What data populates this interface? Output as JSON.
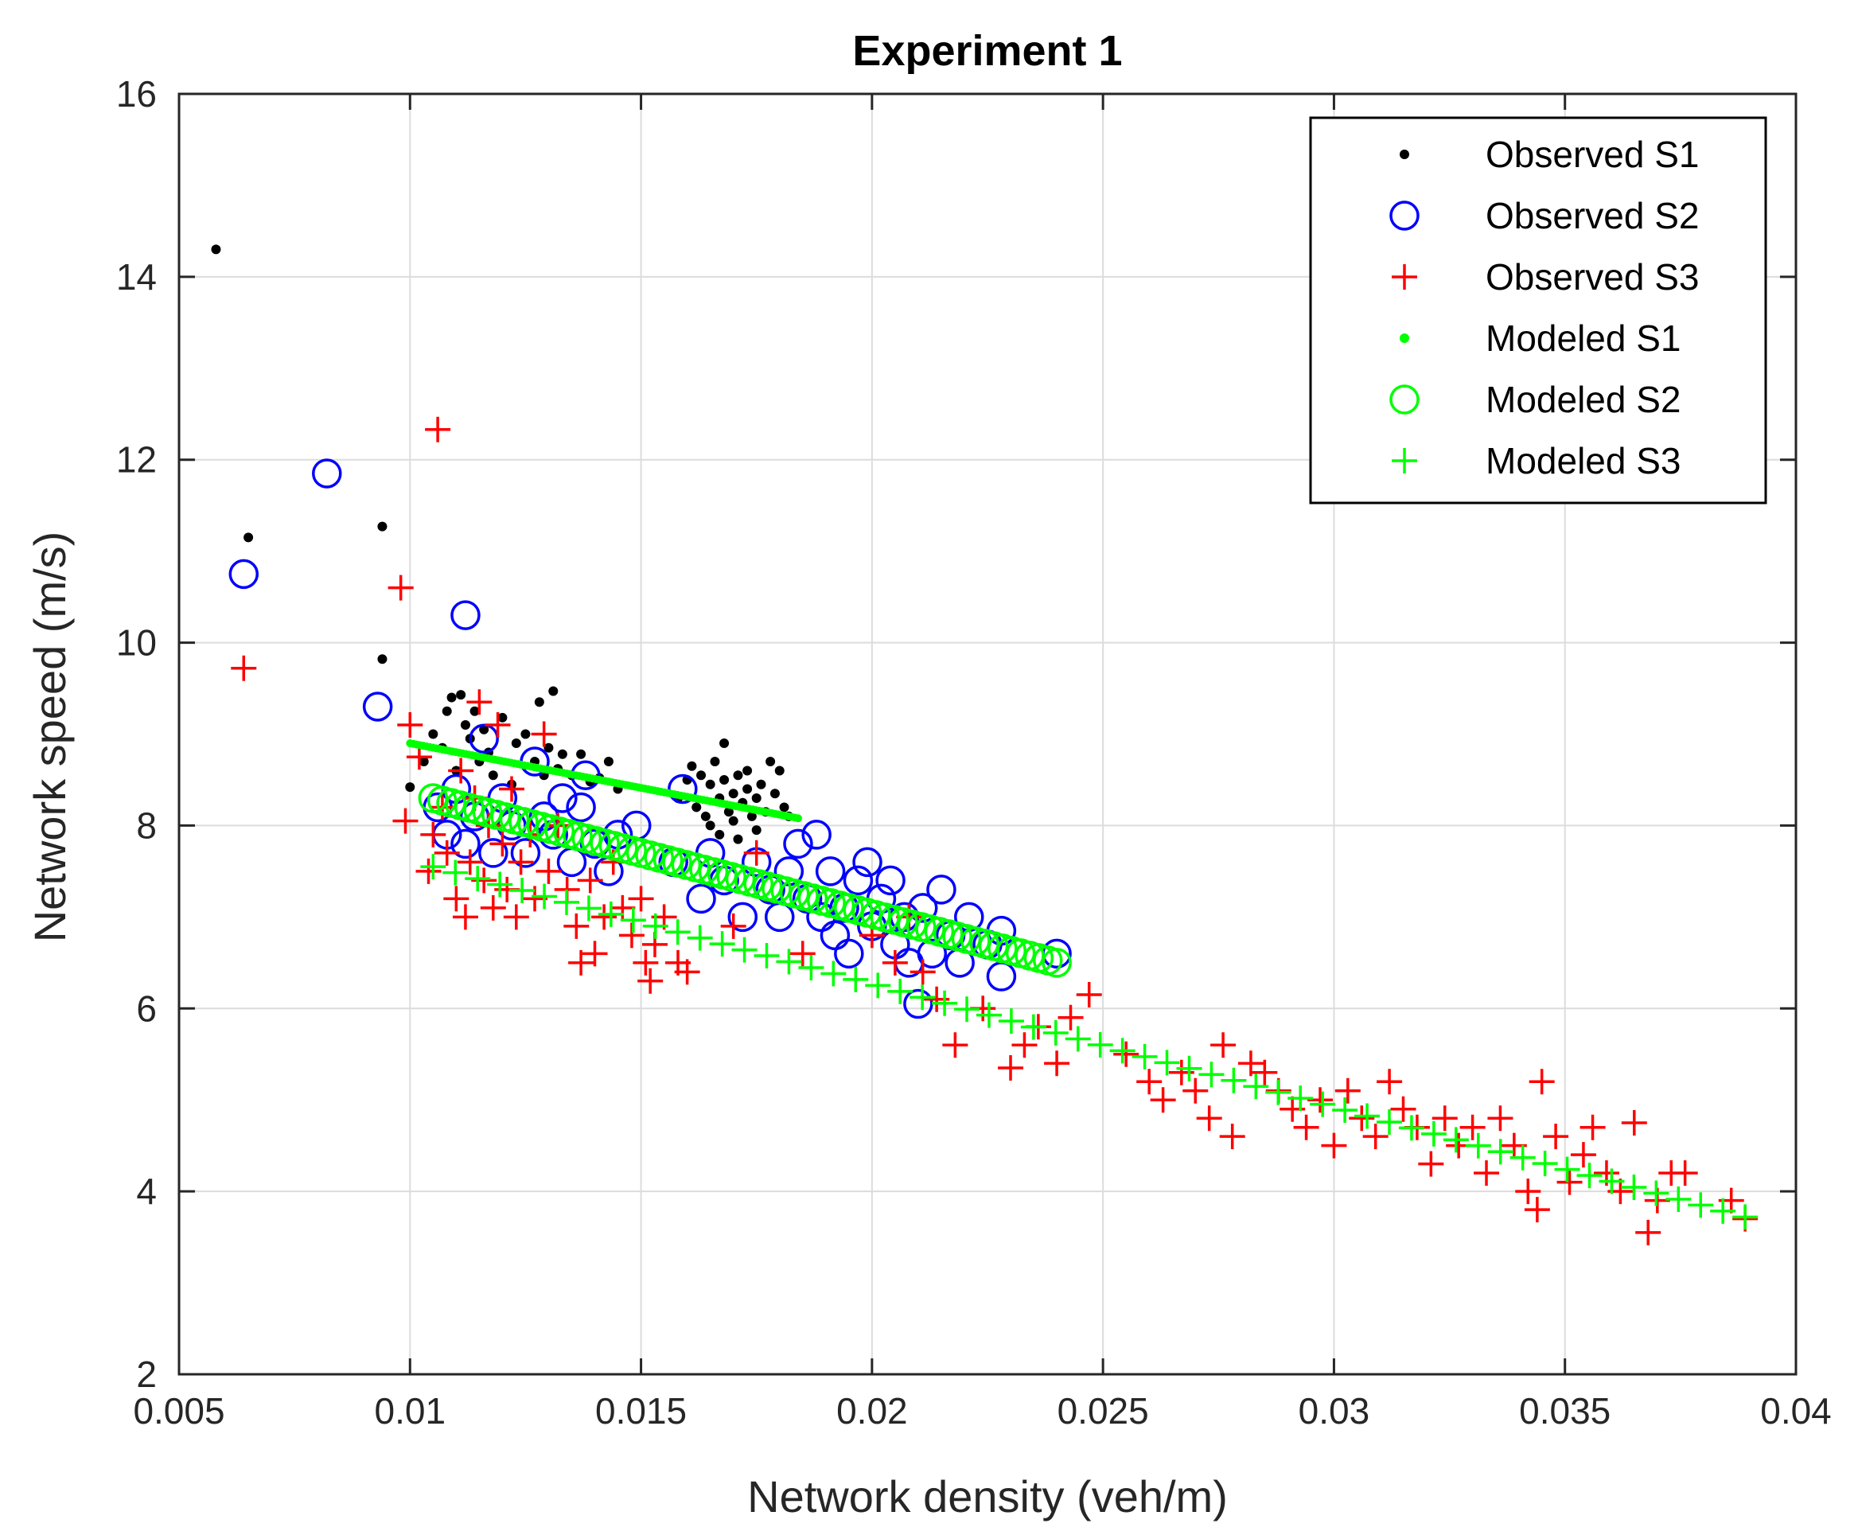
{
  "chart_data": {
    "type": "scatter",
    "title": "Experiment 1",
    "xlabel": "Network density (veh/m)",
    "ylabel": "Network speed (m/s)",
    "xlim": [
      0.005,
      0.04
    ],
    "ylim": [
      2,
      16
    ],
    "xticks": [
      0.005,
      0.01,
      0.015,
      0.02,
      0.025,
      0.03,
      0.035,
      0.04
    ],
    "xtick_labels": [
      "0.005",
      "0.01",
      "0.015",
      "0.02",
      "0.025",
      "0.03",
      "0.035",
      "0.04"
    ],
    "yticks": [
      2,
      4,
      6,
      8,
      10,
      12,
      14,
      16
    ],
    "ytick_labels": [
      "2",
      "4",
      "6",
      "8",
      "10",
      "12",
      "14",
      "16"
    ],
    "grid": true,
    "legend_position": "top-right",
    "series": [
      {
        "name": "Observed S1",
        "color": "#000000",
        "marker": "dot",
        "points": [
          [
            0.0058,
            14.3
          ],
          [
            0.0065,
            11.15
          ],
          [
            0.0094,
            11.27
          ],
          [
            0.0094,
            9.82
          ],
          [
            0.01,
            8.42
          ],
          [
            0.0103,
            8.7
          ],
          [
            0.0105,
            9.0
          ],
          [
            0.0107,
            8.85
          ],
          [
            0.0108,
            9.25
          ],
          [
            0.0109,
            9.4
          ],
          [
            0.011,
            8.6
          ],
          [
            0.0111,
            9.43
          ],
          [
            0.0112,
            9.1
          ],
          [
            0.0113,
            8.95
          ],
          [
            0.0114,
            9.25
          ],
          [
            0.0115,
            8.7
          ],
          [
            0.0116,
            9.05
          ],
          [
            0.0117,
            8.8
          ],
          [
            0.0118,
            8.55
          ],
          [
            0.012,
            9.18
          ],
          [
            0.0122,
            8.45
          ],
          [
            0.0123,
            8.9
          ],
          [
            0.0125,
            9.0
          ],
          [
            0.0127,
            8.7
          ],
          [
            0.0128,
            9.35
          ],
          [
            0.0129,
            8.55
          ],
          [
            0.013,
            8.85
          ],
          [
            0.0131,
            9.47
          ],
          [
            0.0132,
            8.62
          ],
          [
            0.0133,
            8.78
          ],
          [
            0.0135,
            8.55
          ],
          [
            0.0137,
            8.78
          ],
          [
            0.0139,
            8.48
          ],
          [
            0.0141,
            8.52
          ],
          [
            0.0143,
            8.7
          ],
          [
            0.0145,
            8.4
          ],
          [
            0.0158,
            8.3
          ],
          [
            0.016,
            8.5
          ],
          [
            0.0161,
            8.65
          ],
          [
            0.0162,
            8.2
          ],
          [
            0.0163,
            8.55
          ],
          [
            0.0164,
            8.1
          ],
          [
            0.0165,
            8.45
          ],
          [
            0.0165,
            8.0
          ],
          [
            0.0166,
            8.7
          ],
          [
            0.0167,
            8.3
          ],
          [
            0.0167,
            7.9
          ],
          [
            0.0168,
            8.5
          ],
          [
            0.0168,
            8.9
          ],
          [
            0.0169,
            8.15
          ],
          [
            0.017,
            8.35
          ],
          [
            0.017,
            8.05
          ],
          [
            0.0171,
            8.55
          ],
          [
            0.0171,
            7.85
          ],
          [
            0.0172,
            8.25
          ],
          [
            0.0173,
            8.4
          ],
          [
            0.0173,
            8.6
          ],
          [
            0.0174,
            8.1
          ],
          [
            0.0175,
            8.3
          ],
          [
            0.0175,
            7.95
          ],
          [
            0.0176,
            8.45
          ],
          [
            0.0177,
            8.15
          ],
          [
            0.0178,
            8.7
          ],
          [
            0.0179,
            8.35
          ],
          [
            0.018,
            8.6
          ],
          [
            0.0181,
            8.2
          ],
          [
            0.0182,
            8.1
          ]
        ]
      },
      {
        "name": "Observed S2",
        "color": "#0000FF",
        "marker": "circle",
        "points": [
          [
            0.0064,
            10.75
          ],
          [
            0.0082,
            11.85
          ],
          [
            0.0093,
            9.3
          ],
          [
            0.0112,
            10.3
          ],
          [
            0.0106,
            8.2
          ],
          [
            0.0108,
            7.9
          ],
          [
            0.011,
            8.4
          ],
          [
            0.0112,
            7.8
          ],
          [
            0.0114,
            8.1
          ],
          [
            0.0116,
            8.95
          ],
          [
            0.0118,
            7.7
          ],
          [
            0.012,
            8.3
          ],
          [
            0.0122,
            8.0
          ],
          [
            0.0125,
            7.7
          ],
          [
            0.0127,
            8.7
          ],
          [
            0.0129,
            8.1
          ],
          [
            0.0131,
            7.9
          ],
          [
            0.0133,
            8.3
          ],
          [
            0.0135,
            7.6
          ],
          [
            0.0137,
            8.2
          ],
          [
            0.0138,
            8.55
          ],
          [
            0.014,
            7.8
          ],
          [
            0.0143,
            7.5
          ],
          [
            0.0145,
            7.9
          ],
          [
            0.0149,
            8.0
          ],
          [
            0.0157,
            7.6
          ],
          [
            0.0159,
            8.4
          ],
          [
            0.0163,
            7.2
          ],
          [
            0.0165,
            7.7
          ],
          [
            0.0168,
            7.4
          ],
          [
            0.0172,
            7.0
          ],
          [
            0.0175,
            7.6
          ],
          [
            0.0178,
            7.3
          ],
          [
            0.018,
            7.0
          ],
          [
            0.0182,
            7.5
          ],
          [
            0.0184,
            7.8
          ],
          [
            0.0186,
            7.2
          ],
          [
            0.0188,
            7.9
          ],
          [
            0.0189,
            7.0
          ],
          [
            0.0191,
            7.5
          ],
          [
            0.0192,
            6.8
          ],
          [
            0.0194,
            7.1
          ],
          [
            0.0195,
            6.6
          ],
          [
            0.0197,
            7.4
          ],
          [
            0.0199,
            7.6
          ],
          [
            0.02,
            6.9
          ],
          [
            0.0202,
            7.2
          ],
          [
            0.0204,
            7.4
          ],
          [
            0.0205,
            6.7
          ],
          [
            0.0207,
            7.0
          ],
          [
            0.0208,
            6.5
          ],
          [
            0.021,
            6.05
          ],
          [
            0.0211,
            7.1
          ],
          [
            0.0213,
            6.6
          ],
          [
            0.0215,
            7.3
          ],
          [
            0.0217,
            6.8
          ],
          [
            0.0219,
            6.5
          ],
          [
            0.0221,
            7.0
          ],
          [
            0.0225,
            6.7
          ],
          [
            0.0228,
            6.85
          ],
          [
            0.0228,
            6.35
          ],
          [
            0.024,
            6.6
          ]
        ]
      },
      {
        "name": "Observed S3",
        "color": "#FF0000",
        "marker": "plus",
        "points": [
          [
            0.0064,
            9.72
          ],
          [
            0.0098,
            10.6
          ],
          [
            0.0106,
            12.33
          ],
          [
            0.0099,
            8.05
          ],
          [
            0.01,
            9.1
          ],
          [
            0.0102,
            8.75
          ],
          [
            0.0104,
            7.5
          ],
          [
            0.0105,
            7.9
          ],
          [
            0.0107,
            8.2
          ],
          [
            0.0108,
            7.7
          ],
          [
            0.011,
            7.2
          ],
          [
            0.0111,
            8.6
          ],
          [
            0.0112,
            7.0
          ],
          [
            0.0113,
            7.6
          ],
          [
            0.0114,
            8.3
          ],
          [
            0.0115,
            9.35
          ],
          [
            0.0116,
            7.4
          ],
          [
            0.0117,
            8.0
          ],
          [
            0.0118,
            7.1
          ],
          [
            0.0119,
            9.1
          ],
          [
            0.012,
            7.8
          ],
          [
            0.0121,
            7.3
          ],
          [
            0.0122,
            8.4
          ],
          [
            0.0123,
            7.0
          ],
          [
            0.0124,
            7.6
          ],
          [
            0.0126,
            7.9
          ],
          [
            0.0127,
            7.2
          ],
          [
            0.0129,
            9.0
          ],
          [
            0.013,
            7.5
          ],
          [
            0.0132,
            8.0
          ],
          [
            0.0134,
            7.3
          ],
          [
            0.0136,
            6.9
          ],
          [
            0.0137,
            6.5
          ],
          [
            0.0139,
            7.4
          ],
          [
            0.014,
            6.6
          ],
          [
            0.0142,
            7.0
          ],
          [
            0.0144,
            7.6
          ],
          [
            0.0146,
            7.1
          ],
          [
            0.0148,
            6.8
          ],
          [
            0.015,
            7.2
          ],
          [
            0.0151,
            6.5
          ],
          [
            0.0152,
            6.3
          ],
          [
            0.0153,
            6.7
          ],
          [
            0.0155,
            7.0
          ],
          [
            0.0158,
            6.5
          ],
          [
            0.016,
            6.4
          ],
          [
            0.017,
            6.9
          ],
          [
            0.0175,
            7.7
          ],
          [
            0.0185,
            6.6
          ],
          [
            0.02,
            6.8
          ],
          [
            0.0205,
            6.5
          ],
          [
            0.0208,
            7.0
          ],
          [
            0.0211,
            6.4
          ],
          [
            0.0214,
            6.1
          ],
          [
            0.0218,
            5.6
          ],
          [
            0.0224,
            6.0
          ],
          [
            0.023,
            5.35
          ],
          [
            0.0233,
            5.6
          ],
          [
            0.0236,
            5.8
          ],
          [
            0.024,
            5.4
          ],
          [
            0.0243,
            5.9
          ],
          [
            0.0247,
            6.15
          ],
          [
            0.0255,
            5.5
          ],
          [
            0.026,
            5.2
          ],
          [
            0.0263,
            5.0
          ],
          [
            0.0267,
            5.3
          ],
          [
            0.027,
            5.1
          ],
          [
            0.0273,
            4.8
          ],
          [
            0.0276,
            5.6
          ],
          [
            0.0278,
            4.6
          ],
          [
            0.0282,
            5.4
          ],
          [
            0.0285,
            5.3
          ],
          [
            0.0288,
            5.1
          ],
          [
            0.0291,
            4.9
          ],
          [
            0.0294,
            4.7
          ],
          [
            0.0297,
            5.0
          ],
          [
            0.03,
            4.5
          ],
          [
            0.0303,
            5.1
          ],
          [
            0.0306,
            4.8
          ],
          [
            0.0309,
            4.6
          ],
          [
            0.0312,
            5.2
          ],
          [
            0.0315,
            4.9
          ],
          [
            0.0318,
            4.7
          ],
          [
            0.0321,
            4.3
          ],
          [
            0.0324,
            4.8
          ],
          [
            0.0327,
            4.5
          ],
          [
            0.033,
            4.7
          ],
          [
            0.0333,
            4.2
          ],
          [
            0.0336,
            4.8
          ],
          [
            0.0339,
            4.5
          ],
          [
            0.0342,
            4.0
          ],
          [
            0.0344,
            3.8
          ],
          [
            0.0345,
            5.2
          ],
          [
            0.0348,
            4.6
          ],
          [
            0.0351,
            4.1
          ],
          [
            0.0354,
            4.4
          ],
          [
            0.0356,
            4.7
          ],
          [
            0.0359,
            4.2
          ],
          [
            0.0362,
            4.0
          ],
          [
            0.0365,
            4.75
          ],
          [
            0.0368,
            3.55
          ],
          [
            0.037,
            3.9
          ],
          [
            0.0373,
            4.2
          ],
          [
            0.0376,
            4.2
          ],
          [
            0.0386,
            3.9
          ],
          [
            0.0389,
            3.7
          ]
        ]
      },
      {
        "name": "Modeled S1",
        "color": "#00FF00",
        "marker": "dot-line",
        "x_range": [
          0.01,
          0.0184
        ],
        "y_range": [
          8.9,
          8.08
        ],
        "points": []
      },
      {
        "name": "Modeled S2",
        "color": "#00FF00",
        "marker": "circle",
        "x_range": [
          0.0105,
          0.024
        ],
        "y_range": [
          8.3,
          6.5
        ],
        "points": []
      },
      {
        "name": "Modeled S3",
        "color": "#00FF00",
        "marker": "plus",
        "x_range": [
          0.0105,
          0.0389
        ],
        "y_range": [
          7.55,
          3.72
        ],
        "points": []
      }
    ]
  }
}
